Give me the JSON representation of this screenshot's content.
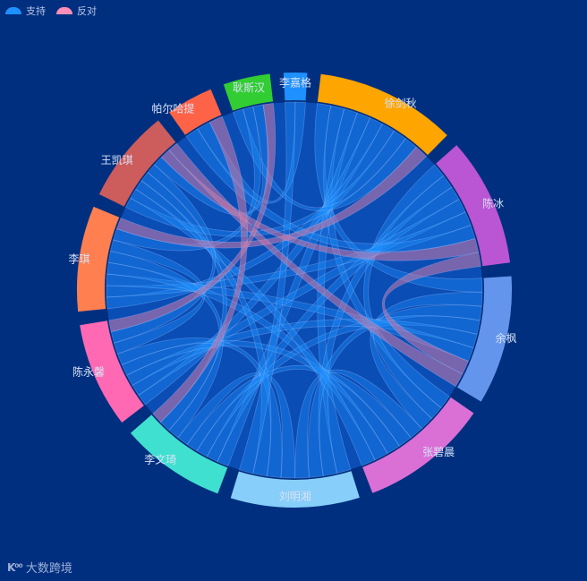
{
  "legend": [
    {
      "label": "支持",
      "color": "#1e90ff"
    },
    {
      "label": "反对",
      "color": "#ff8fb8"
    }
  ],
  "watermark": {
    "logo": "K⁰⁰",
    "text": "大数跨境"
  },
  "chart_data": {
    "type": "chord",
    "title": "",
    "nodes": [
      {
        "name": "徐剑秋",
        "color": "#ffa500"
      },
      {
        "name": "陈冰",
        "color": "#ba55d3"
      },
      {
        "name": "余枫",
        "color": "#6495ed"
      },
      {
        "name": "张碧晨",
        "color": "#da70d6"
      },
      {
        "name": "刘明湘",
        "color": "#87cefa"
      },
      {
        "name": "李文琦",
        "color": "#40e0d0"
      },
      {
        "name": "陈永馨",
        "color": "#ff69b4"
      },
      {
        "name": "李琪",
        "color": "#ff7f50"
      },
      {
        "name": "王凯琪",
        "color": "#cd5c5c"
      },
      {
        "name": "帕尔哈提",
        "color": "#ff6347"
      },
      {
        "name": "耿斯汉",
        "color": "#32cd32"
      },
      {
        "name": "李嘉格",
        "color": "#1e90ff"
      }
    ],
    "node_values": [
      12,
      11,
      11,
      11,
      11,
      9,
      9,
      9,
      8,
      4,
      4,
      2
    ],
    "links_support": [
      [
        "徐剑秋",
        "余枫"
      ],
      [
        "徐剑秋",
        "张碧晨"
      ],
      [
        "徐剑秋",
        "刘明湘"
      ],
      [
        "徐剑秋",
        "李文琦"
      ],
      [
        "徐剑秋",
        "陈永馨"
      ],
      [
        "徐剑秋",
        "李琪"
      ],
      [
        "徐剑秋",
        "王凯琪"
      ],
      [
        "徐剑秋",
        "耿斯汉"
      ],
      [
        "陈冰",
        "张碧晨"
      ],
      [
        "陈冰",
        "刘明湘"
      ],
      [
        "陈冰",
        "李文琦"
      ],
      [
        "陈冰",
        "陈永馨"
      ],
      [
        "陈冰",
        "李琪"
      ],
      [
        "陈冰",
        "帕尔哈提"
      ],
      [
        "余枫",
        "张碧晨"
      ],
      [
        "余枫",
        "刘明湘"
      ],
      [
        "余枫",
        "李文琦"
      ],
      [
        "余枫",
        "陈永馨"
      ],
      [
        "余枫",
        "李琪"
      ],
      [
        "张碧晨",
        "刘明湘"
      ],
      [
        "张碧晨",
        "李文琦"
      ],
      [
        "张碧晨",
        "陈永馨"
      ],
      [
        "张碧晨",
        "李琪"
      ],
      [
        "张碧晨",
        "王凯琪"
      ],
      [
        "刘明湘",
        "李文琦"
      ],
      [
        "刘明湘",
        "陈永馨"
      ],
      [
        "刘明湘",
        "王凯琪"
      ],
      [
        "刘明湘",
        "李嘉格"
      ],
      [
        "李文琦",
        "李琪"
      ],
      [
        "李文琦",
        "王凯琪"
      ],
      [
        "陈永馨",
        "李琪"
      ],
      [
        "陈永馨",
        "王凯琪"
      ],
      [
        "李琪",
        "耿斯汉"
      ],
      [
        "王凯琪",
        "耿斯汉"
      ],
      [
        "帕尔哈提",
        "李嘉格"
      ]
    ],
    "links_oppose": [
      [
        "徐剑秋",
        "李琪"
      ],
      [
        "陈冰",
        "王凯琪"
      ],
      [
        "陈冰",
        "余枫"
      ],
      [
        "余枫",
        "王凯琪"
      ],
      [
        "李文琦",
        "帕尔哈提"
      ],
      [
        "陈永馨",
        "耿斯汉"
      ]
    ]
  }
}
